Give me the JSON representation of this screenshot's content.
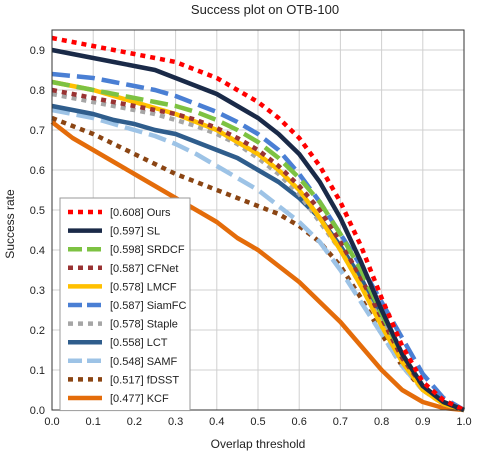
{
  "chart_data": {
    "type": "line",
    "title": "Success plot on OTB-100",
    "xlabel": "Overlap threshold",
    "ylabel": "Success rate",
    "xlim": [
      0,
      1
    ],
    "ylim": [
      0,
      0.95
    ],
    "grid": true,
    "legend_position": "bottom-left",
    "x_ticks": [
      "0.0",
      "0.1",
      "0.2",
      "0.3",
      "0.4",
      "0.5",
      "0.6",
      "0.7",
      "0.8",
      "0.9",
      "1.0"
    ],
    "y_ticks": [
      "0.0",
      "0.1",
      "0.2",
      "0.3",
      "0.4",
      "0.5",
      "0.6",
      "0.7",
      "0.8",
      "0.9"
    ],
    "x": [
      0,
      0.05,
      0.1,
      0.15,
      0.2,
      0.25,
      0.3,
      0.35,
      0.4,
      0.45,
      0.5,
      0.55,
      0.6,
      0.65,
      0.7,
      0.75,
      0.8,
      0.85,
      0.9,
      0.95,
      1.0
    ],
    "series": [
      {
        "name": "[0.608] Ours",
        "color": "#ff0000",
        "style": "dotted",
        "values": [
          0.93,
          0.92,
          0.91,
          0.9,
          0.89,
          0.88,
          0.87,
          0.85,
          0.83,
          0.8,
          0.77,
          0.73,
          0.68,
          0.61,
          0.52,
          0.41,
          0.28,
          0.16,
          0.07,
          0.025,
          0.0
        ]
      },
      {
        "name": "[0.597] SL",
        "color": "#1a2a48",
        "style": "solid",
        "values": [
          0.9,
          0.89,
          0.88,
          0.87,
          0.86,
          0.85,
          0.83,
          0.81,
          0.79,
          0.76,
          0.73,
          0.69,
          0.64,
          0.57,
          0.48,
          0.37,
          0.25,
          0.14,
          0.06,
          0.02,
          0.0
        ]
      },
      {
        "name": "[0.598] SRDCF",
        "color": "#7dc242",
        "style": "dashed",
        "values": [
          0.82,
          0.81,
          0.8,
          0.79,
          0.78,
          0.77,
          0.76,
          0.745,
          0.725,
          0.7,
          0.67,
          0.63,
          0.58,
          0.52,
          0.44,
          0.35,
          0.24,
          0.14,
          0.06,
          0.02,
          0.0
        ]
      },
      {
        "name": "[0.587] CFNet",
        "color": "#993333",
        "style": "dotted",
        "values": [
          0.8,
          0.79,
          0.78,
          0.77,
          0.76,
          0.75,
          0.74,
          0.725,
          0.705,
          0.68,
          0.65,
          0.61,
          0.56,
          0.5,
          0.42,
          0.33,
          0.23,
          0.13,
          0.06,
          0.02,
          0.0
        ]
      },
      {
        "name": "[0.578] LMCF",
        "color": "#ffc000",
        "style": "solid",
        "values": [
          0.82,
          0.81,
          0.8,
          0.785,
          0.77,
          0.755,
          0.74,
          0.72,
          0.7,
          0.67,
          0.64,
          0.6,
          0.55,
          0.48,
          0.4,
          0.31,
          0.21,
          0.12,
          0.05,
          0.015,
          0.0
        ]
      },
      {
        "name": "[0.587] SiamFC",
        "color": "#4a7fd4",
        "style": "dashed",
        "values": [
          0.84,
          0.835,
          0.83,
          0.82,
          0.81,
          0.8,
          0.785,
          0.765,
          0.745,
          0.72,
          0.69,
          0.65,
          0.59,
          0.52,
          0.44,
          0.36,
          0.27,
          0.18,
          0.09,
          0.03,
          0.0
        ]
      },
      {
        "name": "[0.578] Staple",
        "color": "#a6a6a6",
        "style": "dotted",
        "values": [
          0.79,
          0.78,
          0.77,
          0.76,
          0.75,
          0.74,
          0.725,
          0.71,
          0.69,
          0.665,
          0.63,
          0.59,
          0.54,
          0.47,
          0.4,
          0.31,
          0.22,
          0.13,
          0.06,
          0.02,
          0.0
        ]
      },
      {
        "name": "[0.558] LCT",
        "color": "#2f5d8c",
        "style": "solid",
        "values": [
          0.76,
          0.75,
          0.74,
          0.725,
          0.715,
          0.7,
          0.69,
          0.67,
          0.65,
          0.63,
          0.6,
          0.57,
          0.53,
          0.48,
          0.41,
          0.33,
          0.23,
          0.13,
          0.06,
          0.02,
          0.0
        ]
      },
      {
        "name": "[0.548] SAMF",
        "color": "#9dc3e6",
        "style": "dashed",
        "values": [
          0.75,
          0.74,
          0.73,
          0.715,
          0.7,
          0.685,
          0.665,
          0.64,
          0.61,
          0.58,
          0.55,
          0.51,
          0.47,
          0.42,
          0.35,
          0.27,
          0.19,
          0.11,
          0.05,
          0.015,
          0.0
        ]
      },
      {
        "name": "[0.517] fDSST",
        "color": "#8b4513",
        "style": "dotted",
        "values": [
          0.73,
          0.71,
          0.69,
          0.665,
          0.64,
          0.615,
          0.59,
          0.57,
          0.55,
          0.53,
          0.51,
          0.49,
          0.46,
          0.42,
          0.36,
          0.28,
          0.19,
          0.11,
          0.05,
          0.015,
          0.0
        ]
      },
      {
        "name": "[0.477] KCF",
        "color": "#e46c0a",
        "style": "solid",
        "values": [
          0.72,
          0.68,
          0.65,
          0.62,
          0.59,
          0.56,
          0.53,
          0.5,
          0.47,
          0.43,
          0.4,
          0.36,
          0.32,
          0.27,
          0.22,
          0.16,
          0.1,
          0.05,
          0.02,
          0.005,
          0.0
        ]
      }
    ]
  }
}
